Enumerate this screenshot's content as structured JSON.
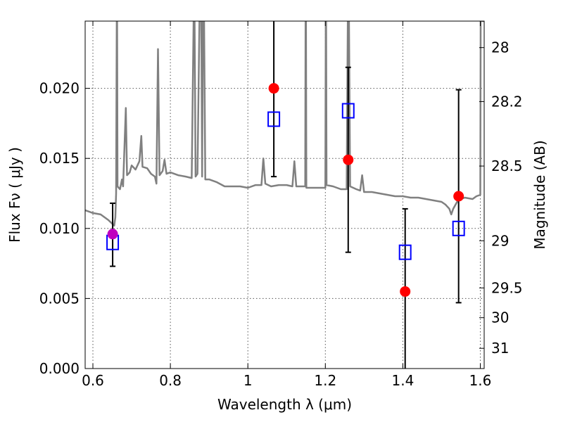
{
  "chart_data": {
    "type": "scatter",
    "xlabel": "Wavelength  λ (μm)",
    "ylabel": "Flux  Fν  ( μJy )",
    "ylabel_right": "Magnitude (AB)",
    "xlim": [
      0.58,
      1.61
    ],
    "ylim": [
      0.0,
      0.0248
    ],
    "x_ticks": [
      0.6,
      0.8,
      1.0,
      1.2,
      1.4,
      1.6
    ],
    "x_tick_labels": [
      "0.6",
      "0.8",
      "1",
      "1.2",
      "1.4",
      "1.6"
    ],
    "y_ticks": [
      0.0,
      0.005,
      0.01,
      0.015,
      0.02
    ],
    "y_tick_labels": [
      "0.000",
      "0.005",
      "0.010",
      "0.015",
      "0.020"
    ],
    "right_ticks": [
      {
        "mag": 28,
        "label": "28"
      },
      {
        "mag": 28.2,
        "label": "28.2"
      },
      {
        "mag": 28.5,
        "label": "28.5"
      },
      {
        "mag": 29,
        "label": "29"
      },
      {
        "mag": 29.5,
        "label": "29.5"
      },
      {
        "mag": 30,
        "label": "30"
      },
      {
        "mag": 31,
        "label": "31"
      }
    ],
    "grid": true,
    "series": [
      {
        "kind": "model_spectrum",
        "color": "#808080",
        "points": [
          [
            0.58,
            0.0113
          ],
          [
            0.6,
            0.0111
          ],
          [
            0.62,
            0.011
          ],
          [
            0.64,
            0.0106
          ],
          [
            0.655,
            0.0102
          ],
          [
            0.658,
            0.0108
          ],
          [
            0.66,
            0.0125
          ],
          [
            0.6615,
            0.0248
          ],
          [
            0.6625,
            0.0248
          ],
          [
            0.6635,
            0.013
          ],
          [
            0.67,
            0.0128
          ],
          [
            0.675,
            0.0135
          ],
          [
            0.678,
            0.013
          ],
          [
            0.685,
            0.0186
          ],
          [
            0.688,
            0.0138
          ],
          [
            0.695,
            0.014
          ],
          [
            0.7,
            0.0145
          ],
          [
            0.71,
            0.0142
          ],
          [
            0.72,
            0.0148
          ],
          [
            0.725,
            0.0166
          ],
          [
            0.728,
            0.0144
          ],
          [
            0.74,
            0.0143
          ],
          [
            0.75,
            0.0139
          ],
          [
            0.76,
            0.0137
          ],
          [
            0.764,
            0.0132
          ],
          [
            0.768,
            0.0228
          ],
          [
            0.772,
            0.0138
          ],
          [
            0.78,
            0.0141
          ],
          [
            0.785,
            0.0149
          ],
          [
            0.79,
            0.0139
          ],
          [
            0.8,
            0.014
          ],
          [
            0.82,
            0.0138
          ],
          [
            0.84,
            0.0137
          ],
          [
            0.855,
            0.0136
          ],
          [
            0.86,
            0.0248
          ],
          [
            0.8625,
            0.0248
          ],
          [
            0.865,
            0.0137
          ],
          [
            0.87,
            0.0139
          ],
          [
            0.875,
            0.0248
          ],
          [
            0.88,
            0.0248
          ],
          [
            0.882,
            0.0137
          ],
          [
            0.884,
            0.0248
          ],
          [
            0.887,
            0.0248
          ],
          [
            0.89,
            0.0135
          ],
          [
            0.9,
            0.0135
          ],
          [
            0.92,
            0.0133
          ],
          [
            0.94,
            0.013
          ],
          [
            0.96,
            0.013
          ],
          [
            0.98,
            0.013
          ],
          [
            1.0,
            0.0129
          ],
          [
            1.02,
            0.0131
          ],
          [
            1.035,
            0.0131
          ],
          [
            1.04,
            0.015
          ],
          [
            1.045,
            0.0132
          ],
          [
            1.06,
            0.013
          ],
          [
            1.08,
            0.0131
          ],
          [
            1.1,
            0.0131
          ],
          [
            1.115,
            0.013
          ],
          [
            1.12,
            0.0148
          ],
          [
            1.125,
            0.013
          ],
          [
            1.14,
            0.013
          ],
          [
            1.148,
            0.013
          ],
          [
            1.149,
            0.0248
          ],
          [
            1.15,
            0.0248
          ],
          [
            1.151,
            0.0129
          ],
          [
            1.2,
            0.0129
          ],
          [
            1.201,
            0.0248
          ],
          [
            1.202,
            0.0248
          ],
          [
            1.203,
            0.0131
          ],
          [
            1.22,
            0.013
          ],
          [
            1.24,
            0.0128
          ],
          [
            1.255,
            0.0128
          ],
          [
            1.258,
            0.0248
          ],
          [
            1.261,
            0.0248
          ],
          [
            1.264,
            0.013
          ],
          [
            1.28,
            0.0128
          ],
          [
            1.29,
            0.0127
          ],
          [
            1.295,
            0.0138
          ],
          [
            1.3,
            0.0126
          ],
          [
            1.32,
            0.0126
          ],
          [
            1.34,
            0.0125
          ],
          [
            1.36,
            0.0124
          ],
          [
            1.38,
            0.0123
          ],
          [
            1.4,
            0.0123
          ],
          [
            1.42,
            0.0122
          ],
          [
            1.44,
            0.0122
          ],
          [
            1.46,
            0.0121
          ],
          [
            1.48,
            0.012
          ],
          [
            1.5,
            0.0119
          ],
          [
            1.51,
            0.0117
          ],
          [
            1.52,
            0.0114
          ],
          [
            1.525,
            0.011
          ],
          [
            1.53,
            0.0114
          ],
          [
            1.54,
            0.0119
          ],
          [
            1.55,
            0.0121
          ],
          [
            1.56,
            0.0122
          ],
          [
            1.58,
            0.0121
          ],
          [
            1.59,
            0.0123
          ],
          [
            1.6,
            0.0124
          ],
          [
            1.601,
            0.0248
          ],
          [
            1.61,
            0.0248
          ]
        ]
      },
      {
        "kind": "observed",
        "color": "#ff0000",
        "marker": "circle",
        "points": [
          {
            "x": 1.067,
            "y": 0.02,
            "err_low": 0.0137,
            "err_high": 0.0248
          },
          {
            "x": 1.259,
            "y": 0.0149,
            "err_low": 0.0083,
            "err_high": 0.0215
          },
          {
            "x": 1.406,
            "y": 0.0055,
            "err_low": 0.0,
            "err_high": 0.0114
          },
          {
            "x": 1.544,
            "y": 0.0123,
            "err_low": 0.0047,
            "err_high": 0.0199
          }
        ]
      },
      {
        "kind": "observed_highlight",
        "color": "#bf00bf",
        "marker": "circle",
        "points": [
          {
            "x": 0.651,
            "y": 0.0096,
            "err_low": 0.0073,
            "err_high": 0.0118
          }
        ]
      },
      {
        "kind": "model_synthetic",
        "color": "#0000ff",
        "marker": "open-square",
        "points": [
          {
            "x": 0.651,
            "y": 0.009
          },
          {
            "x": 1.067,
            "y": 0.0178
          },
          {
            "x": 1.259,
            "y": 0.0184
          },
          {
            "x": 1.406,
            "y": 0.0083
          },
          {
            "x": 1.544,
            "y": 0.01
          }
        ]
      }
    ]
  }
}
